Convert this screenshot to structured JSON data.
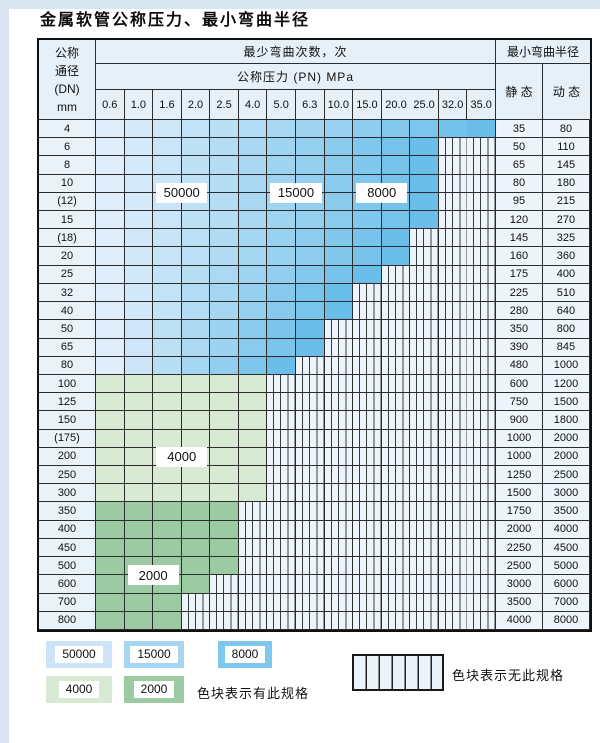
{
  "title": "金属软管公称压力、最小弯曲半径",
  "table": {
    "dn_header_lines": [
      "公称",
      "通径",
      "(DN)",
      "mm"
    ],
    "cycles_header": "最少弯曲次数，次",
    "pressure_header": "公称压力 (PN) MPa",
    "pressure_columns": [
      "0.6",
      "1.0",
      "1.6",
      "2.0",
      "2.5",
      "4.0",
      "5.0",
      "6.3",
      "10.0",
      "15.0",
      "20.0",
      "25.0",
      "32.0",
      "35.0"
    ],
    "radius_header": "最小弯曲半径",
    "static_header": "静 态",
    "dynamic_header": "动 态",
    "rows": [
      {
        "dn": "4",
        "colored_through": "35.0",
        "zone": "blue",
        "static": "35",
        "dynamic": "80"
      },
      {
        "dn": "6",
        "colored_through": "25.0",
        "zone": "blue",
        "static": "50",
        "dynamic": "110"
      },
      {
        "dn": "8",
        "colored_through": "25.0",
        "zone": "blue",
        "static": "65",
        "dynamic": "145"
      },
      {
        "dn": "10",
        "colored_through": "25.0",
        "zone": "blue",
        "static": "80",
        "dynamic": "180"
      },
      {
        "dn": "(12)",
        "colored_through": "25.0",
        "zone": "blue",
        "static": "95",
        "dynamic": "215"
      },
      {
        "dn": "15",
        "colored_through": "25.0",
        "zone": "blue",
        "static": "120",
        "dynamic": "270"
      },
      {
        "dn": "(18)",
        "colored_through": "20.0",
        "zone": "blue",
        "static": "145",
        "dynamic": "325"
      },
      {
        "dn": "20",
        "colored_through": "20.0",
        "zone": "blue",
        "static": "160",
        "dynamic": "360"
      },
      {
        "dn": "25",
        "colored_through": "15.0",
        "zone": "blue",
        "static": "175",
        "dynamic": "400"
      },
      {
        "dn": "32",
        "colored_through": "10.0",
        "zone": "blue",
        "static": "225",
        "dynamic": "510"
      },
      {
        "dn": "40",
        "colored_through": "10.0",
        "zone": "blue",
        "static": "280",
        "dynamic": "640"
      },
      {
        "dn": "50",
        "colored_through": "6.3",
        "zone": "blue",
        "static": "350",
        "dynamic": "800"
      },
      {
        "dn": "65",
        "colored_through": "6.3",
        "zone": "blue",
        "static": "390",
        "dynamic": "845"
      },
      {
        "dn": "80",
        "colored_through": "5.0",
        "zone": "blue",
        "static": "480",
        "dynamic": "1000"
      },
      {
        "dn": "100",
        "colored_through": "4.0",
        "zone": "green_light",
        "static": "600",
        "dynamic": "1200"
      },
      {
        "dn": "125",
        "colored_through": "4.0",
        "zone": "green_light",
        "static": "750",
        "dynamic": "1500"
      },
      {
        "dn": "150",
        "colored_through": "4.0",
        "zone": "green_light",
        "static": "900",
        "dynamic": "1800"
      },
      {
        "dn": "(175)",
        "colored_through": "4.0",
        "zone": "green_light",
        "static": "1000",
        "dynamic": "2000"
      },
      {
        "dn": "200",
        "colored_through": "4.0",
        "zone": "green_light",
        "static": "1000",
        "dynamic": "2000"
      },
      {
        "dn": "250",
        "colored_through": "4.0",
        "zone": "green_light",
        "static": "1250",
        "dynamic": "2500"
      },
      {
        "dn": "300",
        "colored_through": "4.0",
        "zone": "green_light",
        "static": "1500",
        "dynamic": "3000"
      },
      {
        "dn": "350",
        "colored_through": "2.5",
        "zone": "green_dark",
        "static": "1750",
        "dynamic": "3500"
      },
      {
        "dn": "400",
        "colored_through": "2.5",
        "zone": "green_dark",
        "static": "2000",
        "dynamic": "4000"
      },
      {
        "dn": "450",
        "colored_through": "2.5",
        "zone": "green_dark",
        "static": "2250",
        "dynamic": "4500"
      },
      {
        "dn": "500",
        "colored_through": "2.5",
        "zone": "green_dark",
        "static": "2500",
        "dynamic": "5000"
      },
      {
        "dn": "600",
        "colored_through": "2.0",
        "zone": "green_dark",
        "static": "3000",
        "dynamic": "6000"
      },
      {
        "dn": "700",
        "colored_through": "1.6",
        "zone": "green_dark",
        "static": "3500",
        "dynamic": "7000"
      },
      {
        "dn": "800",
        "colored_through": "1.6",
        "zone": "green_dark",
        "static": "4000",
        "dynamic": "8000"
      }
    ],
    "zone_labels": [
      {
        "text": "50000",
        "col_from": "1.6",
        "col_to": "2.0",
        "row_from": "10",
        "row_to": "(12)"
      },
      {
        "text": "15000",
        "col_from": "5.0",
        "col_to": "6.3",
        "row_from": "10",
        "row_to": "(12)"
      },
      {
        "text": "8000",
        "col_from": "15.0",
        "col_to": "20.0",
        "row_from": "10",
        "row_to": "(12)"
      },
      {
        "text": "4000",
        "col_from": "1.6",
        "col_to": "2.0",
        "row_from": "200",
        "row_to": "200"
      },
      {
        "text": "2000",
        "col_from": "1.0",
        "col_to": "1.6",
        "row_from": "500",
        "row_to": "600"
      }
    ]
  },
  "colors": {
    "blue_light": "#dfeefa",
    "blue_dark": "#6abee9",
    "green_light": "#d8e9d4",
    "green_dark": "#9ccaa2",
    "hatch_bg": "#eef4fb",
    "header_bg": "#e5f0f9"
  },
  "legend": {
    "items": [
      {
        "label": "50000",
        "color": "#cde4f6"
      },
      {
        "label": "15000",
        "color": "#a6d6f1"
      },
      {
        "label": "8000",
        "color": "#7ec7ed"
      },
      {
        "label": "4000",
        "color": "#d8e9d4"
      },
      {
        "label": "2000",
        "color": "#9ccaa2"
      }
    ],
    "have_text": "色块表示有此规格",
    "none_text": "色块表示无此规格"
  }
}
